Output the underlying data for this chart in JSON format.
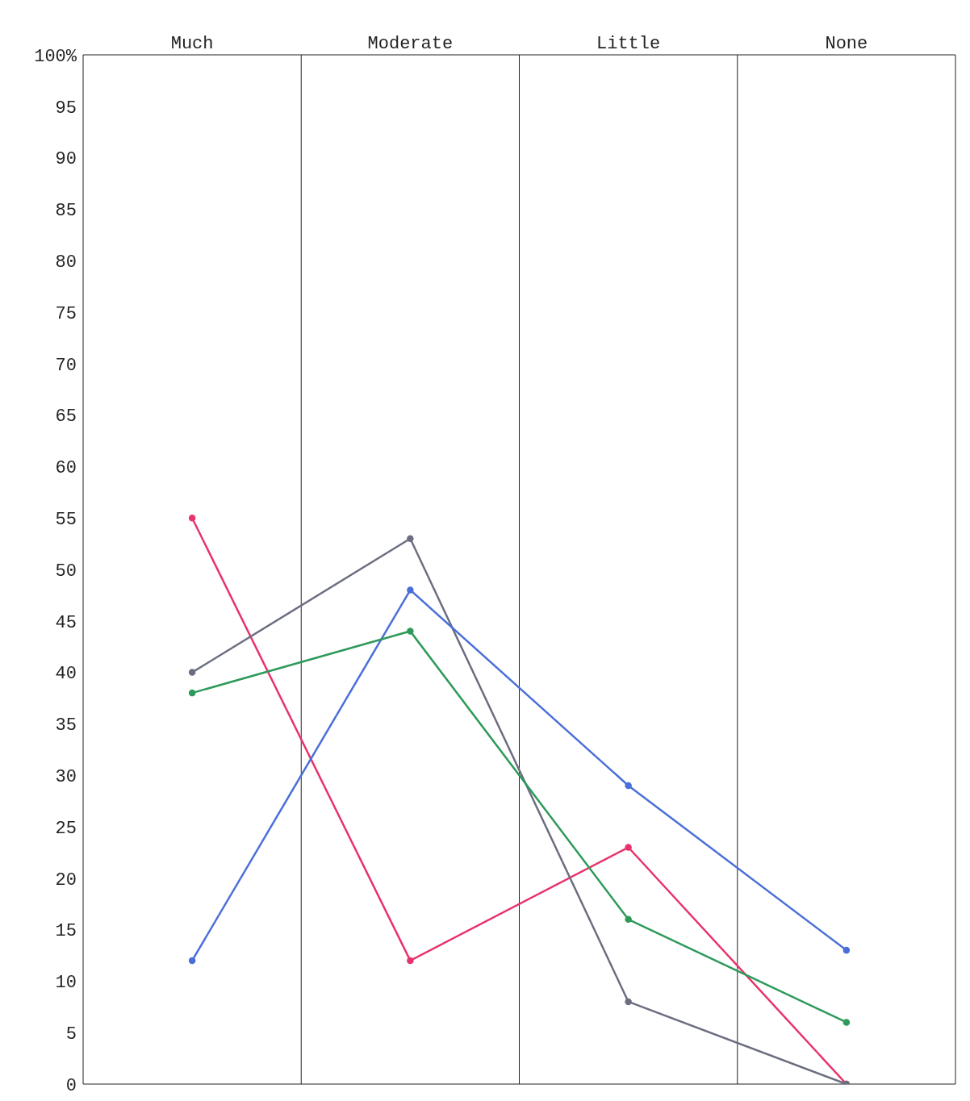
{
  "chart_data": {
    "type": "line",
    "categories": [
      "Much",
      "Moderate",
      "Little",
      "None"
    ],
    "series": [
      {
        "color": "#e8336a",
        "values": [
          55,
          12,
          23,
          0
        ]
      },
      {
        "color": "#6b6e80",
        "values": [
          40,
          53,
          8,
          0
        ]
      },
      {
        "color": "#4a6fd8",
        "values": [
          12,
          48,
          29,
          13
        ]
      },
      {
        "color": "#2e9a5a",
        "values": [
          38,
          44,
          16,
          6
        ]
      }
    ],
    "ylim": [
      0,
      100
    ],
    "yticks": [
      0,
      5,
      10,
      15,
      20,
      25,
      30,
      35,
      40,
      45,
      50,
      55,
      60,
      65,
      70,
      75,
      80,
      85,
      90,
      95,
      {
        "value": 100,
        "label": "100%"
      }
    ],
    "grid": "x",
    "marker": "circle",
    "line_style": "solid"
  }
}
